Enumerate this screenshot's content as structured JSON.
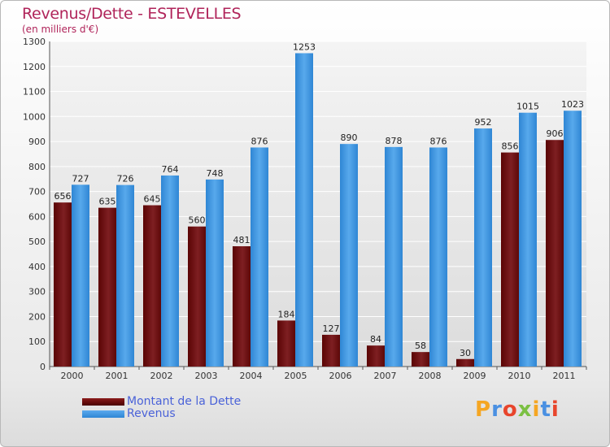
{
  "title": "Revenus/Dette - ESTEVELLES",
  "subtitle": "(en milliers d'€)",
  "logo": {
    "text": "Proxiti",
    "colors": [
      "#f5a623",
      "#4a90e2",
      "#e8452c",
      "#7bc043",
      "#f5a623",
      "#4a90e2",
      "#e8452c"
    ]
  },
  "colors": {
    "dette": "#6e0c0c",
    "revenus": "#3f95de"
  },
  "chart_data": {
    "type": "bar",
    "title": "Revenus/Dette - ESTEVELLES",
    "subtitle": "(en milliers d'€)",
    "categories": [
      "2000",
      "2001",
      "2002",
      "2003",
      "2004",
      "2005",
      "2006",
      "2007",
      "2008",
      "2009",
      "2010",
      "2011"
    ],
    "series": [
      {
        "name": "Montant de la Dette",
        "color": "#6e0c0c",
        "values": [
          656,
          635,
          645,
          560,
          481,
          184,
          127,
          84,
          58,
          30,
          856,
          906
        ]
      },
      {
        "name": "Revenus",
        "color": "#3f95de",
        "values": [
          727,
          726,
          764,
          748,
          876,
          1253,
          890,
          878,
          876,
          952,
          1015,
          1023
        ]
      }
    ],
    "ylim": [
      0,
      1300
    ],
    "yticks": [
      0,
      100,
      200,
      300,
      400,
      500,
      600,
      700,
      800,
      900,
      1000,
      1100,
      1200,
      1300
    ],
    "grid": true,
    "legend": "bottom-left"
  }
}
